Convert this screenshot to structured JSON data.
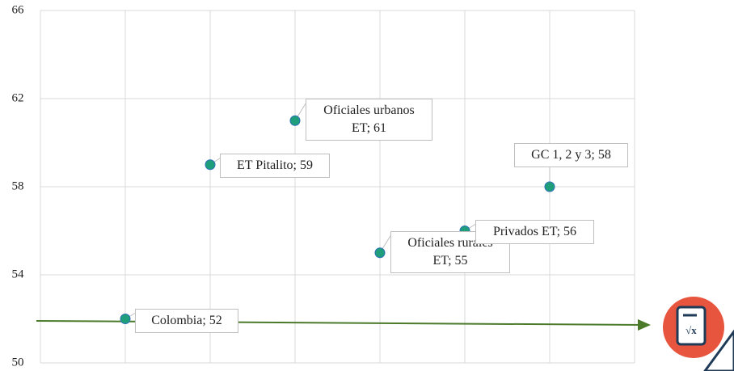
{
  "chart_data": {
    "type": "scatter",
    "x": [
      1,
      2,
      3,
      4,
      5,
      6
    ],
    "values": [
      52,
      59,
      61,
      55,
      56,
      58
    ],
    "value_labels": [
      "Colombia; 52",
      "ET Pitalito; 59",
      "Oficiales urbanos ET; 61",
      "Oficiales rurales ET; 55",
      "Privados ET; 56",
      "GC 1, 2 y 3; 58"
    ],
    "color": "#1f9e7c",
    "xlim": [
      0,
      7
    ],
    "xticks": [
      0,
      1,
      2,
      3,
      4,
      5,
      6,
      7
    ],
    "ylim": [
      50,
      66
    ],
    "yticks": [
      50,
      54,
      58,
      62,
      66
    ],
    "grid": true
  }
}
